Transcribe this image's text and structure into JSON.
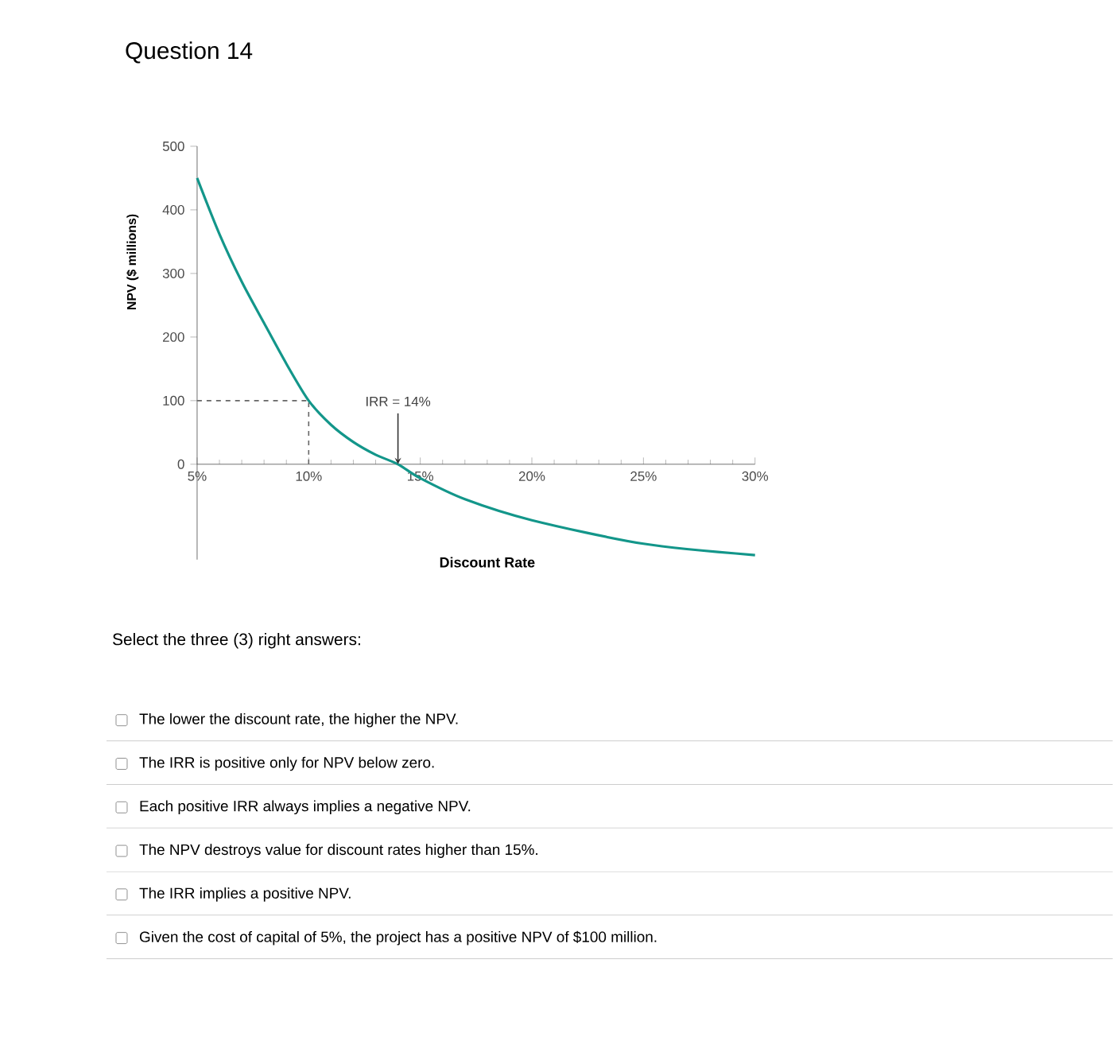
{
  "chart_data": {
    "type": "line",
    "title": "Question 14",
    "xlabel": "Discount Rate",
    "ylabel": "NPV ($ millions)",
    "x": [
      5,
      6,
      7,
      8,
      9,
      10,
      11,
      12,
      13,
      14,
      15,
      17,
      20,
      25,
      30
    ],
    "series": [
      {
        "color": "#13968a",
        "values": [
          450,
          362,
          287,
          222,
          158,
          100,
          62,
          35,
          15,
          0,
          -22,
          -55,
          -88,
          -125,
          -143
        ]
      }
    ],
    "xlim": [
      5,
      30
    ],
    "ylim": [
      -150,
      500
    ],
    "xticks": [
      {
        "value": 5,
        "label": "5%"
      },
      {
        "value": 10,
        "label": "10%"
      },
      {
        "value": 15,
        "label": "15%"
      },
      {
        "value": 20,
        "label": "20%"
      },
      {
        "value": 25,
        "label": "25%"
      },
      {
        "value": 30,
        "label": "30%"
      }
    ],
    "yticks": [
      0,
      100,
      200,
      300,
      400,
      500
    ],
    "ref_lines": [
      {
        "axis": "y",
        "value": 100,
        "line_style": "dashed"
      },
      {
        "axis": "x",
        "value": 10,
        "line_style": "dashed"
      }
    ],
    "annotations": [
      {
        "text": "IRR = 14%",
        "x": 14,
        "y": 0
      },
      "Select the three (3) right answers:",
      "The lower the discount rate, the higher the NPV.",
      "The IRR is positive only for NPV below zero.",
      "Each positive IRR always implies a negative NPV.",
      "The NPV destroys value for discount rates higher than 15%.",
      "The IRR implies a positive NPV.",
      "Given the cost of capital of 5%, the project has a positive NPV of $100 million."
    ],
    "grid": false,
    "marker": "none",
    "line_style": "solid"
  }
}
